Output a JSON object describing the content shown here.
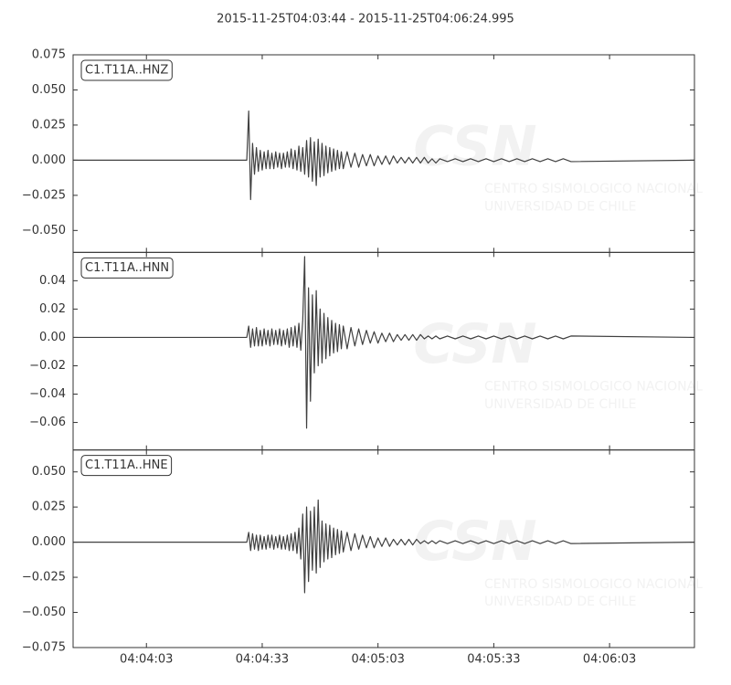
{
  "chart_data": {
    "type": "line",
    "title": "2015-11-25T04:03:44  -  2015-11-25T04:06:24.995",
    "x": [
      0,
      45,
      45.5,
      46,
      46.5,
      47,
      47.5,
      48,
      48.5,
      49,
      49.5,
      50,
      50.5,
      51,
      51.5,
      52,
      52.5,
      53,
      53.5,
      54,
      54.5,
      55,
      55.5,
      56,
      56.5,
      57,
      57.5,
      58,
      58.5,
      59,
      59.5,
      60,
      60.5,
      61,
      61.5,
      62,
      62.5,
      63,
      63.5,
      64,
      64.5,
      65,
      65.5,
      66,
      66.5,
      67,
      67.5,
      68,
      68.5,
      69,
      69.5,
      70,
      71,
      72,
      73,
      74,
      75,
      76,
      77,
      78,
      79,
      80,
      81,
      82,
      83,
      84,
      85,
      86,
      87,
      88,
      89,
      90,
      91,
      92,
      93,
      94,
      95,
      97,
      99,
      101,
      103,
      105,
      107,
      109,
      111,
      113,
      115,
      117,
      119,
      121,
      123,
      125,
      127,
      129,
      161
    ],
    "xlim": [
      0,
      160.995
    ],
    "xticks": [
      {
        "value": 19,
        "label": "04:04:03"
      },
      {
        "value": 49,
        "label": "04:04:33"
      },
      {
        "value": 79,
        "label": "04:05:03"
      },
      {
        "value": 109,
        "label": "04:05:33"
      },
      {
        "value": 139,
        "label": "04:06:03"
      }
    ],
    "series": [
      {
        "name": "C1.T11A..HNZ",
        "color": "#404040",
        "ylim": [
          -0.0656,
          0.075
        ],
        "yticks": [
          0.075,
          {
            "value": 0.05,
            "label": "0.050"
          },
          0.025,
          {
            "value": 0,
            "label": "0.000"
          },
          {
            "value": -0.025,
            "label": "−0.025"
          },
          {
            "value": -0.05,
            "label": "−0.050"
          }
        ],
        "values": [
          0,
          0,
          0.035,
          -0.028,
          0.012,
          -0.01,
          0.009,
          -0.008,
          0.007,
          -0.007,
          0.006,
          -0.006,
          0.007,
          -0.006,
          0.005,
          -0.006,
          0.006,
          -0.005,
          0.005,
          -0.006,
          0.005,
          -0.005,
          0.006,
          -0.005,
          0.008,
          -0.006,
          0.007,
          -0.007,
          0.01,
          -0.008,
          0.009,
          -0.01,
          0.014,
          -0.012,
          0.016,
          -0.015,
          0.013,
          -0.018,
          0.015,
          -0.012,
          0.012,
          -0.011,
          0.01,
          -0.009,
          0.009,
          -0.008,
          0.008,
          -0.007,
          0.007,
          -0.006,
          0.006,
          -0.006,
          0.006,
          -0.005,
          0.005,
          -0.005,
          0.004,
          -0.004,
          0.004,
          -0.004,
          0.003,
          -0.003,
          0.003,
          -0.003,
          0.003,
          -0.002,
          0.002,
          -0.002,
          0.002,
          -0.002,
          0.002,
          -0.002,
          0.002,
          -0.002,
          0.001,
          -0.002,
          0.001,
          -0.001,
          0.001,
          -0.001,
          0.001,
          -0.001,
          0.001,
          -0.001,
          0.001,
          -0.001,
          0.001,
          -0.001,
          0.001,
          -0.001,
          0.001,
          -0.001,
          0.001,
          -0.001,
          0
        ]
      },
      {
        "name": "C1.T11A..HNN",
        "color": "#404040",
        "ylim": [
          -0.0794,
          0.06
        ],
        "yticks": [
          0.04,
          0.02,
          {
            "value": 0,
            "label": "0.00"
          },
          {
            "value": -0.02,
            "label": "−0.02"
          },
          {
            "value": -0.04,
            "label": "−0.04"
          },
          {
            "value": -0.06,
            "label": "−0.06"
          }
        ],
        "values": [
          0,
          0,
          0.008,
          -0.007,
          0.006,
          -0.006,
          0.007,
          -0.006,
          0.005,
          -0.006,
          0.006,
          -0.005,
          0.005,
          -0.006,
          0.006,
          -0.005,
          0.005,
          -0.005,
          0.006,
          -0.006,
          0.005,
          -0.005,
          0.006,
          -0.007,
          0.007,
          -0.006,
          0.008,
          -0.007,
          0.01,
          -0.009,
          0.012,
          0.057,
          -0.064,
          0.035,
          -0.045,
          0.03,
          -0.025,
          0.033,
          -0.02,
          0.02,
          -0.018,
          0.017,
          -0.015,
          0.014,
          -0.013,
          0.012,
          -0.011,
          0.01,
          -0.01,
          0.009,
          -0.008,
          0.008,
          -0.008,
          0.007,
          -0.006,
          0.006,
          -0.005,
          0.005,
          -0.004,
          0.004,
          -0.004,
          0.003,
          -0.003,
          0.003,
          -0.003,
          0.002,
          -0.002,
          0.002,
          -0.002,
          0.002,
          -0.002,
          0.002,
          -0.001,
          0.001,
          -0.001,
          0.001,
          -0.001,
          0.001,
          -0.001,
          0.001,
          -0.001,
          0.001,
          -0.001,
          0.001,
          -0.001,
          0.001,
          -0.001,
          0.001,
          -0.001,
          0.001,
          -0.001,
          0.001,
          -0.001,
          0.001,
          0
        ]
      },
      {
        "name": "C1.T11A..HNE",
        "color": "#404040",
        "ylim": [
          -0.075,
          0.0656
        ],
        "yticks": [
          {
            "value": 0.05,
            "label": "0.050"
          },
          0.025,
          {
            "value": 0,
            "label": "0.000"
          },
          {
            "value": -0.025,
            "label": "−0.025"
          },
          {
            "value": -0.05,
            "label": "−0.050"
          },
          {
            "value": -0.075,
            "label": "−0.075"
          }
        ],
        "values": [
          0,
          0,
          0.007,
          -0.006,
          0.006,
          -0.005,
          0.005,
          -0.006,
          0.005,
          -0.005,
          0.004,
          -0.005,
          0.005,
          -0.004,
          0.005,
          -0.005,
          0.004,
          -0.004,
          0.005,
          -0.005,
          0.004,
          -0.005,
          0.005,
          -0.006,
          0.006,
          -0.006,
          0.007,
          -0.008,
          0.01,
          -0.012,
          0.02,
          -0.036,
          0.025,
          -0.028,
          0.022,
          -0.02,
          0.025,
          -0.022,
          0.03,
          -0.018,
          0.015,
          -0.014,
          0.013,
          -0.012,
          0.012,
          -0.011,
          0.01,
          -0.009,
          0.009,
          -0.008,
          0.008,
          -0.007,
          0.007,
          -0.006,
          0.006,
          -0.005,
          0.005,
          -0.004,
          0.004,
          -0.004,
          0.003,
          -0.003,
          0.003,
          -0.003,
          0.002,
          -0.002,
          0.002,
          -0.002,
          0.002,
          -0.002,
          0.002,
          -0.001,
          0.001,
          -0.001,
          0.001,
          -0.001,
          0.001,
          -0.001,
          0.001,
          -0.001,
          0.001,
          -0.001,
          0.001,
          -0.001,
          0.001,
          -0.001,
          0.001,
          -0.001,
          0.001,
          -0.001,
          0.001,
          -0.001,
          0.001,
          -0.001,
          0
        ]
      }
    ],
    "watermark": {
      "logo": "CSN",
      "line1": "CENTRO SISMOLOGICO NACIONAL",
      "line2": "UNIVERSIDAD DE CHILE"
    }
  }
}
